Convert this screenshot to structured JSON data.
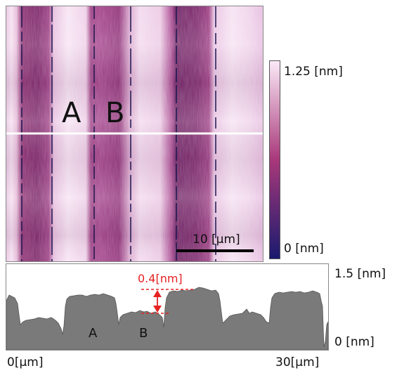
{
  "map": {
    "region_a": "A",
    "region_b": "B",
    "scale_bar_label": "10 [μm]"
  },
  "colorbar": {
    "max_label": "1.25 [nm]",
    "min_label": "0 [nm]",
    "low_color": "#1a1a6e",
    "mid_color": "#a8387a",
    "high_color": "#fbe9f7"
  },
  "profile": {
    "step_label": "0.4[nm]",
    "region_a": "A",
    "region_b": "B",
    "y_max_label": "1.5 [nm]",
    "y_min_label": "0 [nm]",
    "x_min_label": "0[μm]",
    "x_max_label": "30[μm]",
    "fill_color": "#7a7a7a",
    "marker_color": "#e52222"
  }
}
